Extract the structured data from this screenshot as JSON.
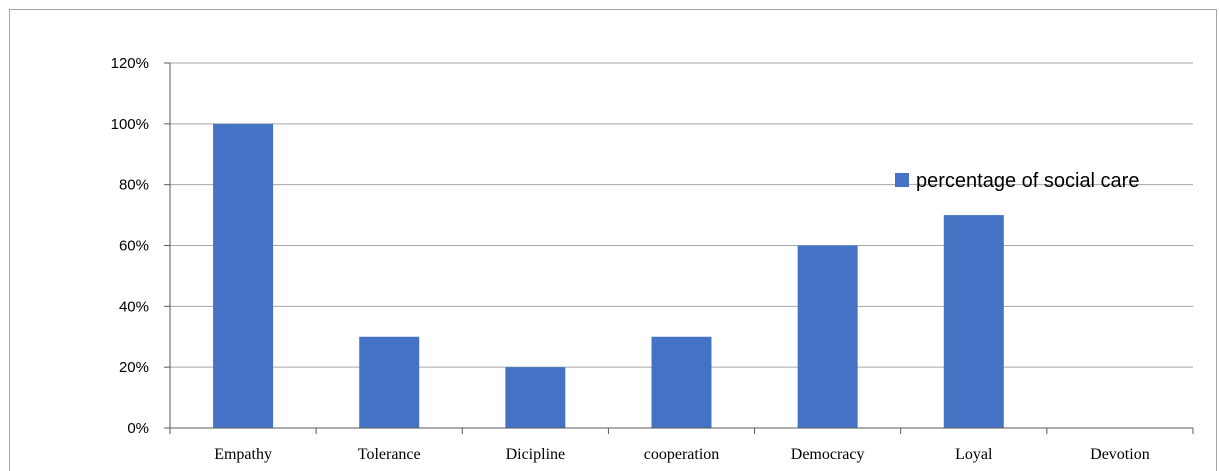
{
  "chart_data": {
    "type": "bar",
    "categories": [
      "Empathy",
      "Tolerance",
      "Dicipline",
      "cooperation",
      "Democracy",
      "Loyal",
      "Devotion"
    ],
    "series": [
      {
        "name": "percentage of social care",
        "values": [
          100,
          30,
          20,
          30,
          60,
          70,
          0
        ],
        "color": "#4472c4"
      }
    ],
    "ylim": [
      0,
      120
    ],
    "yticks": [
      0,
      20,
      40,
      60,
      80,
      100,
      120
    ],
    "ytick_labels": [
      "0%",
      "20%",
      "40%",
      "60%",
      "80%",
      "100%",
      "120%"
    ],
    "grid": true,
    "legend": "right"
  }
}
